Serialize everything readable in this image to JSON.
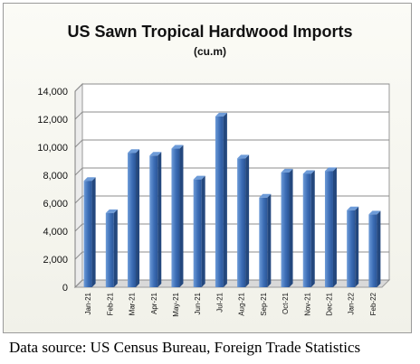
{
  "chart_data": {
    "type": "bar",
    "title": "US Sawn Tropical Hardwood Imports",
    "subtitle": "(cu.m)",
    "xlabel": "",
    "ylabel": "",
    "categories": [
      "Jan-21",
      "Feb-21",
      "Mar-21",
      "Apr-21",
      "May-21",
      "Jun-21",
      "Jul-21",
      "Aug-21",
      "Sep-21",
      "Oct-21",
      "Nov-21",
      "Dec-21",
      "Jan-22",
      "Feb-22"
    ],
    "values": [
      7600,
      5300,
      9600,
      9400,
      9900,
      7700,
      12200,
      9200,
      6400,
      8200,
      8100,
      8300,
      5500,
      5200
    ],
    "y_ticks": [
      "0",
      "2,000",
      "4,000",
      "6,000",
      "8,000",
      "10,000",
      "12,000",
      "14,000"
    ],
    "ylim": [
      0,
      14000
    ],
    "grid": true,
    "legend": "none",
    "bar_color": "#3c6db5",
    "bar_highlight": "#6d9bd8",
    "bar_shadow": "#24487e"
  },
  "source_note": "Data source: US Census Bureau, Foreign Trade Statistics"
}
